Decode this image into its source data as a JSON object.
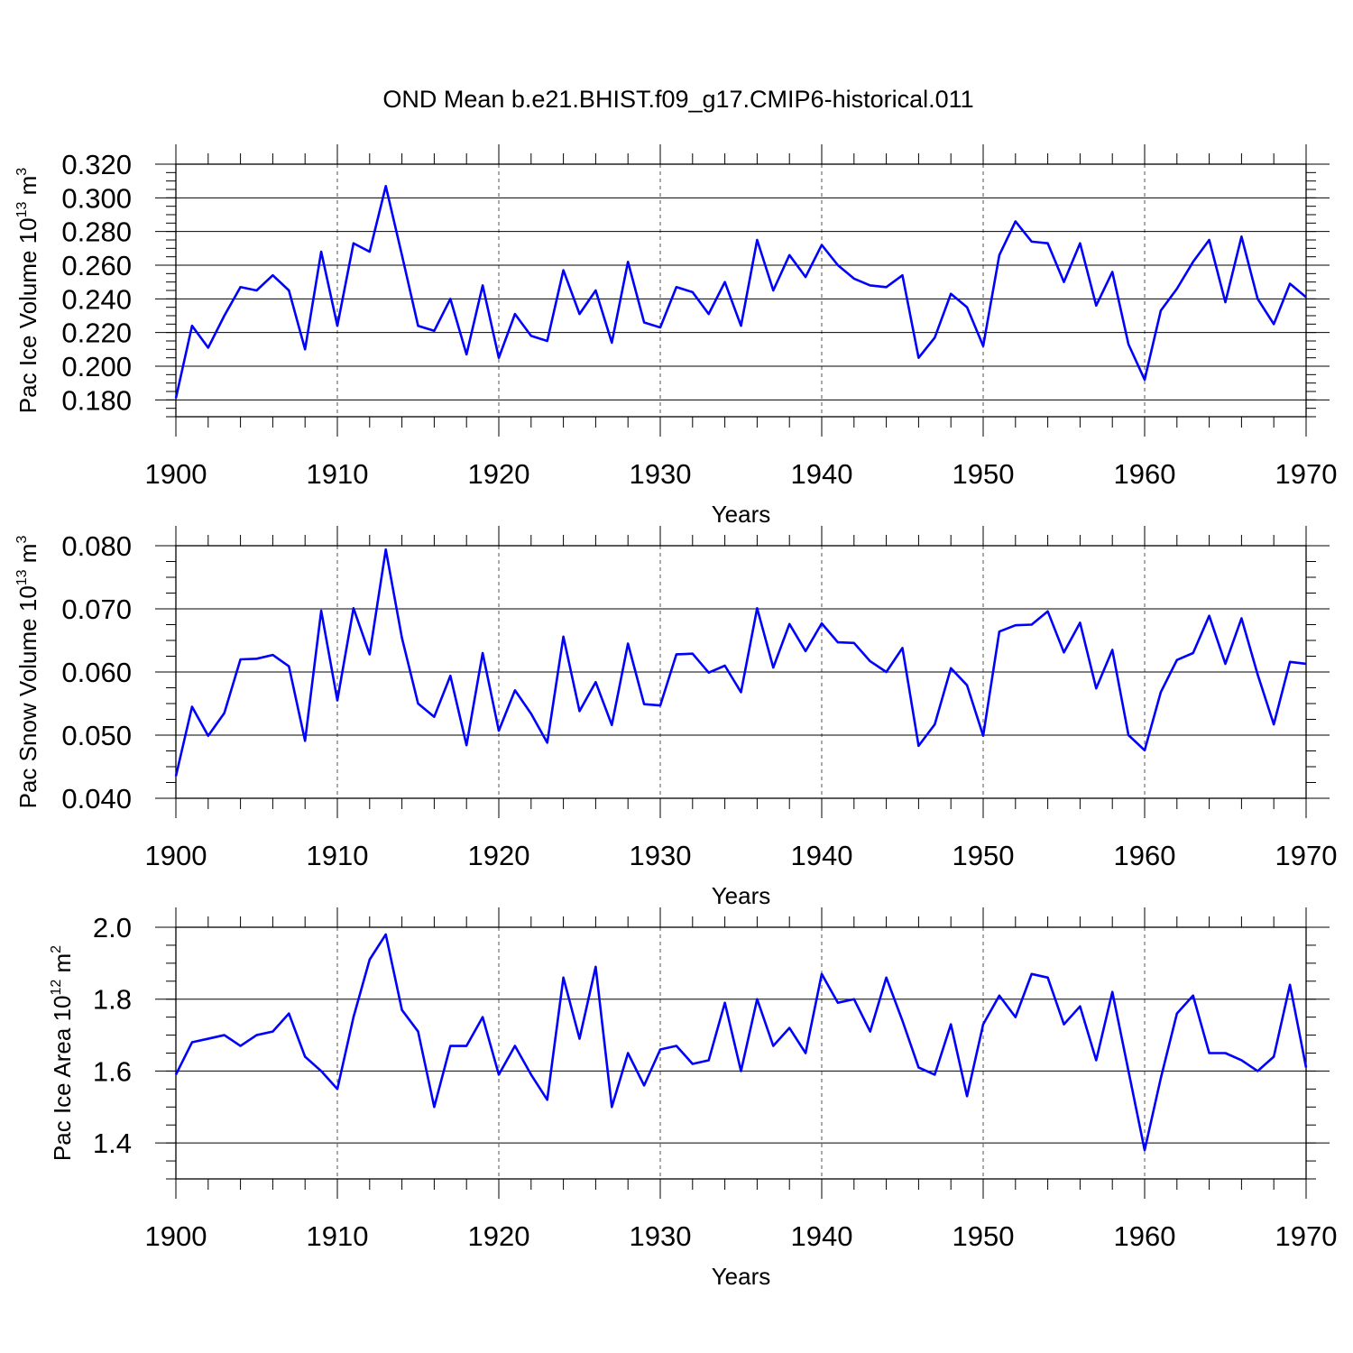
{
  "title": "OND Mean b.e21.BHIST.f09_g17.CMIP6-historical.011",
  "colors": {
    "line": "#0000ff",
    "axis": "#000000",
    "grid": "#000000",
    "background": "#ffffff"
  },
  "chart_data": [
    {
      "type": "line",
      "xlabel": "Years",
      "ylabel": {
        "text": "Pac Ice Volume 10",
        "exp": "13",
        "unit": " m",
        "unit_exp": "3"
      },
      "xlim": [
        1900,
        1970
      ],
      "ylim": [
        0.17,
        0.32
      ],
      "xticks": [
        "1900",
        "1910",
        "1920",
        "1930",
        "1940",
        "1950",
        "1960",
        "1970"
      ],
      "yticks": [
        "0.180",
        "0.200",
        "0.220",
        "0.240",
        "0.260",
        "0.280",
        "0.300",
        "0.320"
      ],
      "grid": "dashed vertical at decades",
      "series": [
        {
          "color": "#0000ff",
          "x_start": 1900,
          "values": [
            0.181,
            0.224,
            0.211,
            0.23,
            0.247,
            0.245,
            0.254,
            0.245,
            0.21,
            0.268,
            0.224,
            0.273,
            0.268,
            0.307,
            0.266,
            0.224,
            0.221,
            0.24,
            0.207,
            0.248,
            0.205,
            0.231,
            0.218,
            0.215,
            0.257,
            0.231,
            0.245,
            0.214,
            0.262,
            0.226,
            0.223,
            0.247,
            0.244,
            0.231,
            0.25,
            0.224,
            0.275,
            0.245,
            0.266,
            0.253,
            0.272,
            0.26,
            0.252,
            0.248,
            0.247,
            0.254,
            0.205,
            0.217,
            0.243,
            0.235,
            0.212,
            0.266,
            0.286,
            0.274,
            0.273,
            0.25,
            0.273,
            0.236,
            0.256,
            0.213,
            0.192,
            0.233,
            0.246,
            0.262,
            0.275,
            0.238,
            0.277,
            0.24,
            0.225,
            0.249,
            0.241
          ]
        }
      ]
    },
    {
      "type": "line",
      "xlabel": "Years",
      "ylabel": {
        "text": "Pac Snow Volume 10",
        "exp": "13",
        "unit": " m",
        "unit_exp": "3"
      },
      "xlim": [
        1900,
        1970
      ],
      "ylim": [
        0.04,
        0.08
      ],
      "xticks": [
        "1900",
        "1910",
        "1920",
        "1930",
        "1940",
        "1950",
        "1960",
        "1970"
      ],
      "yticks": [
        "0.040",
        "0.050",
        "0.060",
        "0.070",
        "0.080"
      ],
      "grid": "dashed vertical at decades",
      "series": [
        {
          "color": "#0000ff",
          "x_start": 1900,
          "values": [
            0.0435,
            0.0545,
            0.0499,
            0.0535,
            0.062,
            0.0621,
            0.0627,
            0.0609,
            0.0491,
            0.0697,
            0.0555,
            0.0701,
            0.0628,
            0.0794,
            0.0654,
            0.055,
            0.0529,
            0.0594,
            0.0484,
            0.063,
            0.0507,
            0.0571,
            0.0534,
            0.0488,
            0.0656,
            0.0538,
            0.0584,
            0.0516,
            0.0645,
            0.0549,
            0.0547,
            0.0628,
            0.0629,
            0.0599,
            0.061,
            0.0568,
            0.0701,
            0.0607,
            0.0676,
            0.0633,
            0.0677,
            0.0647,
            0.0646,
            0.0617,
            0.06,
            0.0638,
            0.0483,
            0.0517,
            0.0606,
            0.0579,
            0.0499,
            0.0664,
            0.0674,
            0.0675,
            0.0696,
            0.0631,
            0.0678,
            0.0574,
            0.0635,
            0.05,
            0.0476,
            0.0568,
            0.0619,
            0.063,
            0.0689,
            0.0613,
            0.0685,
            0.0596,
            0.0517,
            0.0616,
            0.0613
          ]
        }
      ]
    },
    {
      "type": "line",
      "xlabel": "Years",
      "ylabel": {
        "text": "Pac Ice Area 10",
        "exp": "12",
        "unit": " m",
        "unit_exp": "2"
      },
      "xlim": [
        1900,
        1970
      ],
      "ylim": [
        1.3,
        2.0
      ],
      "xticks": [
        "1900",
        "1910",
        "1920",
        "1930",
        "1940",
        "1950",
        "1960",
        "1970"
      ],
      "yticks": [
        "1.4",
        "1.6",
        "1.8",
        "2.0"
      ],
      "grid": "dashed vertical at decades",
      "series": [
        {
          "color": "#0000ff",
          "x_start": 1900,
          "values": [
            1.59,
            1.68,
            1.69,
            1.7,
            1.67,
            1.7,
            1.71,
            1.76,
            1.64,
            1.6,
            1.55,
            1.75,
            1.91,
            1.98,
            1.77,
            1.71,
            1.5,
            1.67,
            1.67,
            1.75,
            1.59,
            1.67,
            1.59,
            1.52,
            1.86,
            1.69,
            1.89,
            1.5,
            1.65,
            1.56,
            1.66,
            1.67,
            1.62,
            1.63,
            1.79,
            1.6,
            1.8,
            1.67,
            1.72,
            1.65,
            1.87,
            1.79,
            1.8,
            1.71,
            1.86,
            1.74,
            1.61,
            1.59,
            1.73,
            1.53,
            1.73,
            1.81,
            1.75,
            1.87,
            1.86,
            1.73,
            1.78,
            1.63,
            1.82,
            1.6,
            1.38,
            1.58,
            1.76,
            1.81,
            1.65,
            1.65,
            1.63,
            1.6,
            1.64,
            1.84,
            1.61
          ]
        }
      ]
    }
  ]
}
